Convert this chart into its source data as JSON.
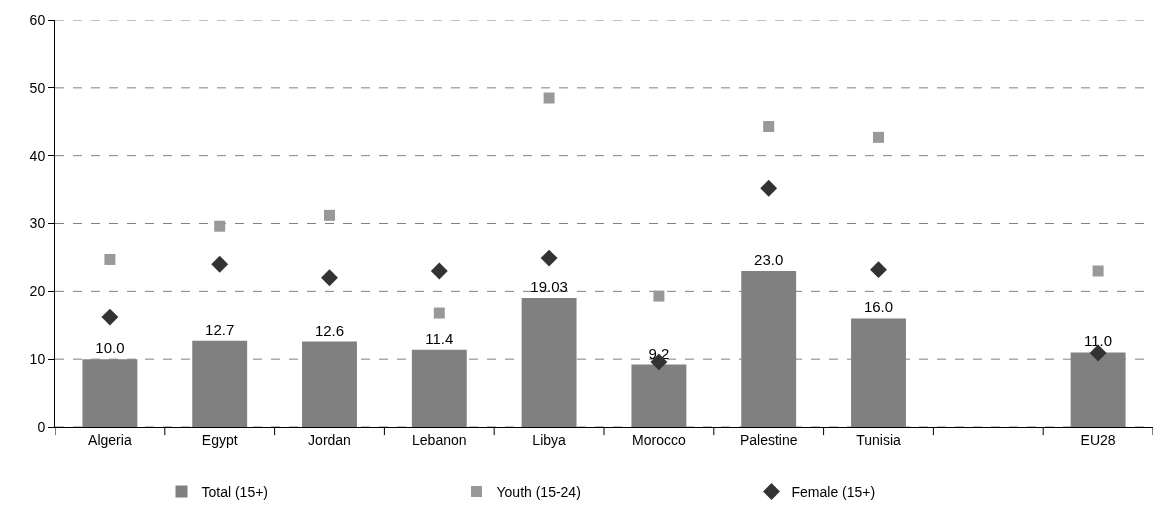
{
  "chart_data": {
    "type": "bar",
    "categories": [
      "Algeria",
      "Egypt",
      "Jordan",
      "Lebanon",
      "Libya",
      "Morocco",
      "Palestine",
      "Tunisia",
      null,
      "EU28"
    ],
    "series": [
      {
        "name": "Total (15+)",
        "color": "#808080",
        "values": [
          10.0,
          12.7,
          12.6,
          11.4,
          19.03,
          9.2,
          23.0,
          16.0,
          null,
          11.0
        ],
        "value_labels": [
          "10.0",
          "12.7",
          "12.6",
          "11.4",
          "19.03",
          "9.2",
          "23.0",
          "16.0",
          null,
          "11.0"
        ]
      },
      {
        "name": "Youth (15-24)",
        "type": "scatter",
        "marker": "square",
        "color": "#999999",
        "values": [
          24.7,
          29.6,
          31.2,
          16.8,
          48.5,
          19.3,
          44.3,
          42.7,
          null,
          23.0
        ]
      },
      {
        "name": "Female (15+)",
        "type": "scatter",
        "marker": "diamond",
        "color": "#333333",
        "values": [
          16.2,
          24.0,
          22.0,
          23.0,
          24.9,
          9.6,
          35.2,
          23.2,
          null,
          10.9
        ]
      }
    ],
    "ylim": [
      0,
      60
    ],
    "yticks": [
      0,
      10,
      20,
      30,
      40,
      50,
      60
    ],
    "grid": "y",
    "legend": "bottom"
  }
}
